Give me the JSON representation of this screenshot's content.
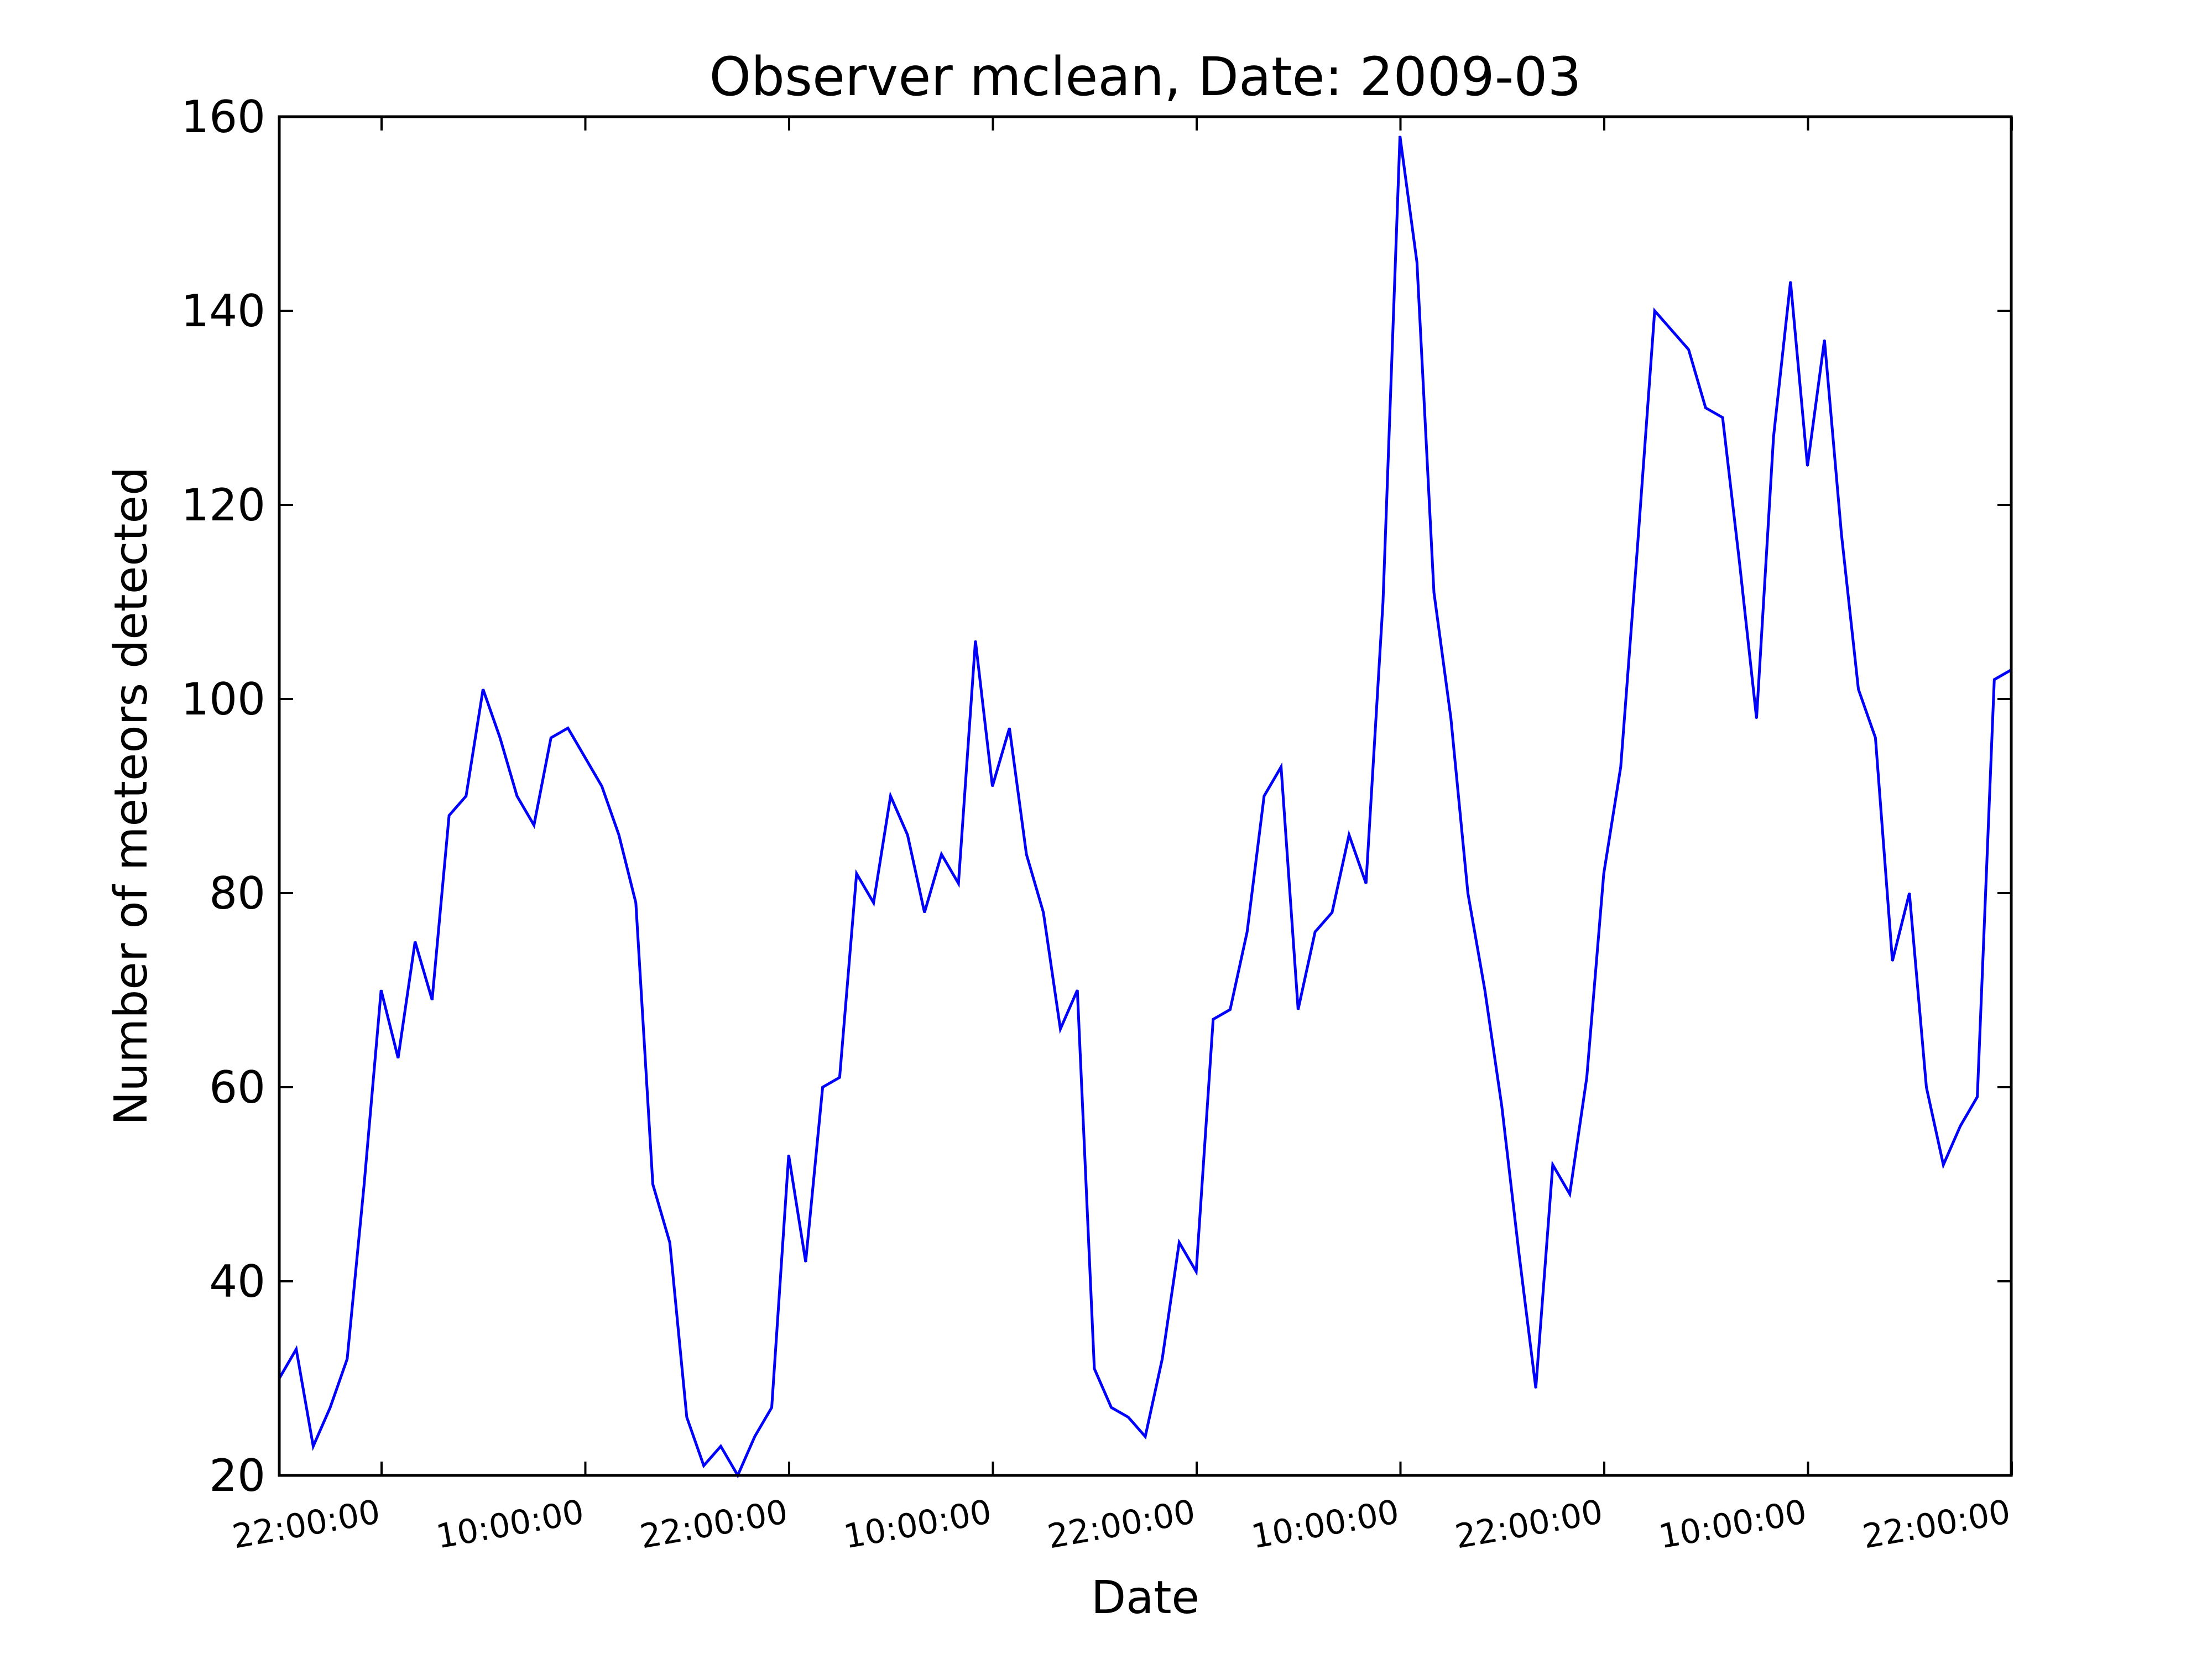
{
  "chart_data": {
    "type": "line",
    "title": "Observer mclean, Date: 2009-03",
    "xlabel": "Date",
    "ylabel": "Number of meteors detected",
    "ylim": [
      20,
      160
    ],
    "yticks": [
      20,
      40,
      60,
      80,
      100,
      120,
      140,
      160
    ],
    "xticks": [
      "22:00:00",
      "10:00:00",
      "22:00:00",
      "10:00:00",
      "22:00:00",
      "10:00:00",
      "22:00:00",
      "10:00:00",
      "22:00:00"
    ],
    "grid": false,
    "series": [
      {
        "color": "#0000ff",
        "values": [
          30,
          33,
          23,
          27,
          32,
          50,
          70,
          63,
          75,
          69,
          88,
          90,
          101,
          96,
          90,
          87,
          96,
          97,
          94,
          91,
          86,
          79,
          50,
          44,
          26,
          21,
          23,
          20,
          24,
          27,
          53,
          42,
          60,
          61,
          82,
          79,
          90,
          86,
          78,
          84,
          81,
          106,
          91,
          97,
          84,
          78,
          66,
          70,
          31,
          27,
          26,
          24,
          32,
          44,
          41,
          67,
          68,
          76,
          90,
          93,
          68,
          76,
          78,
          86,
          81,
          110,
          158,
          145,
          111,
          98,
          80,
          70,
          58,
          43,
          29,
          52,
          49,
          61,
          82,
          93,
          116,
          140,
          138,
          136,
          130,
          129,
          114,
          98,
          127,
          143,
          124,
          137,
          117,
          101,
          96,
          73,
          80,
          60,
          52,
          56,
          59,
          102,
          103
        ]
      }
    ]
  }
}
